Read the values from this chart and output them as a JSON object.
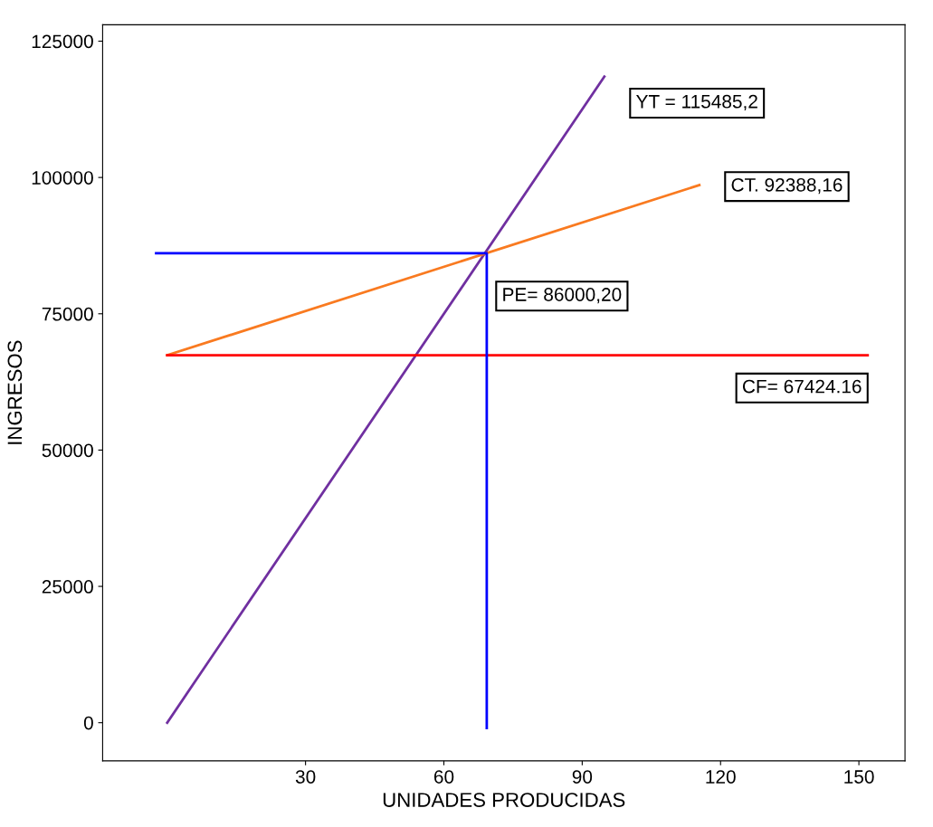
{
  "chart_data": {
    "type": "line",
    "xlabel": "UNIDADES PRODUCIDAS",
    "ylabel": "INGRESOS",
    "series": [
      {
        "color": "#7030a0",
        "x": [
          0,
          94.8
        ],
        "values": [
          0,
          118500
        ]
      },
      {
        "color": "#f97a20",
        "x": [
          0,
          115.4
        ],
        "values": [
          67400,
          98600
        ]
      },
      {
        "color": "#ff0000",
        "x": [
          0,
          151.9
        ],
        "values": [
          67400,
          67400
        ]
      },
      {
        "color": "#0000ff",
        "x": [
          -2.4,
          69.3,
          69.3
        ],
        "values": [
          86100,
          86100,
          -1000
        ]
      }
    ],
    "annotations": [
      {
        "text": "YT = 115485,2",
        "x": 94.8,
        "y": 118500
      },
      {
        "text": "CT. 92388,16",
        "x": 115.4,
        "y": 98600
      },
      {
        "text": "PE= 86000,20",
        "x": 69.3,
        "y": 86100
      },
      {
        "text": "CF= 67424.16",
        "x": 151.9,
        "y": 67400
      }
    ],
    "xlim": [
      -14,
      160
    ],
    "ylim": [
      -7000,
      128000
    ],
    "xticks": [
      30,
      60,
      90,
      120,
      150
    ],
    "yticks": [
      0,
      25000,
      50000,
      75000,
      100000,
      125000
    ],
    "marker": "none",
    "line_style": "solid",
    "grid": false,
    "legend": false
  }
}
